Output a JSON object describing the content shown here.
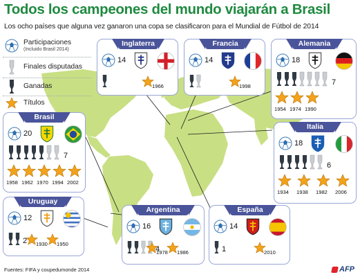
{
  "title": "Todos los campeones del mundo viajarán a Brasil",
  "subtitle": "Los ocho países que alguna vez ganaron una copa se clasificaron para el Mundial de Fútbol de 2014",
  "legend": {
    "participaciones": "Participaciones",
    "participaciones_note": "(Incluido Brasil 2014)",
    "finales": "Finales disputadas",
    "ganadas": "Ganadas",
    "titulos": "Títulos"
  },
  "colors": {
    "title": "#1f8a3f",
    "card_border": "#9aa6d6",
    "header": "#4a549a",
    "land": "#c9df84",
    "ocean": "#ffffff",
    "star": "#f2a31b",
    "trophy_gold": "#2f3a44",
    "trophy_silver": "#c9cdd2"
  },
  "countries": [
    {
      "name": "Inglaterra",
      "participations": "14",
      "finals": 1,
      "wins": 1,
      "titles": [
        "1966"
      ]
    },
    {
      "name": "Francia",
      "participations": "14",
      "finals": 2,
      "wins": 1,
      "titles": [
        "1998"
      ]
    },
    {
      "name": "Alemania",
      "participations": "18",
      "finals": 7,
      "wins": 3,
      "finals_label": "7",
      "titles": [
        "1954",
        "1974",
        "1990"
      ]
    },
    {
      "name": "Brasil",
      "participations": "20",
      "finals": 7,
      "wins": 5,
      "finals_label": "7",
      "titles": [
        "1958",
        "1962",
        "1970",
        "1994",
        "2002"
      ]
    },
    {
      "name": "Italia",
      "participations": "18",
      "finals": 6,
      "wins": 4,
      "finals_label": "6",
      "titles": [
        "1934",
        "1938",
        "1982",
        "2006"
      ]
    },
    {
      "name": "Uruguay",
      "participations": "12",
      "finals": 2,
      "wins": 2,
      "finals_label": "2",
      "titles": [
        "1930",
        "1950"
      ]
    },
    {
      "name": "Argentina",
      "participations": "16",
      "finals": 4,
      "wins": 2,
      "finals_label": "4",
      "titles": [
        "1978",
        "1986"
      ]
    },
    {
      "name": "España",
      "participations": "14",
      "finals": 1,
      "wins": 1,
      "finals_label": "1",
      "titles": [
        "2010"
      ]
    }
  ],
  "footer": "Fuentes: FIFA y coupedumonde 2014",
  "credit": "AFP"
}
